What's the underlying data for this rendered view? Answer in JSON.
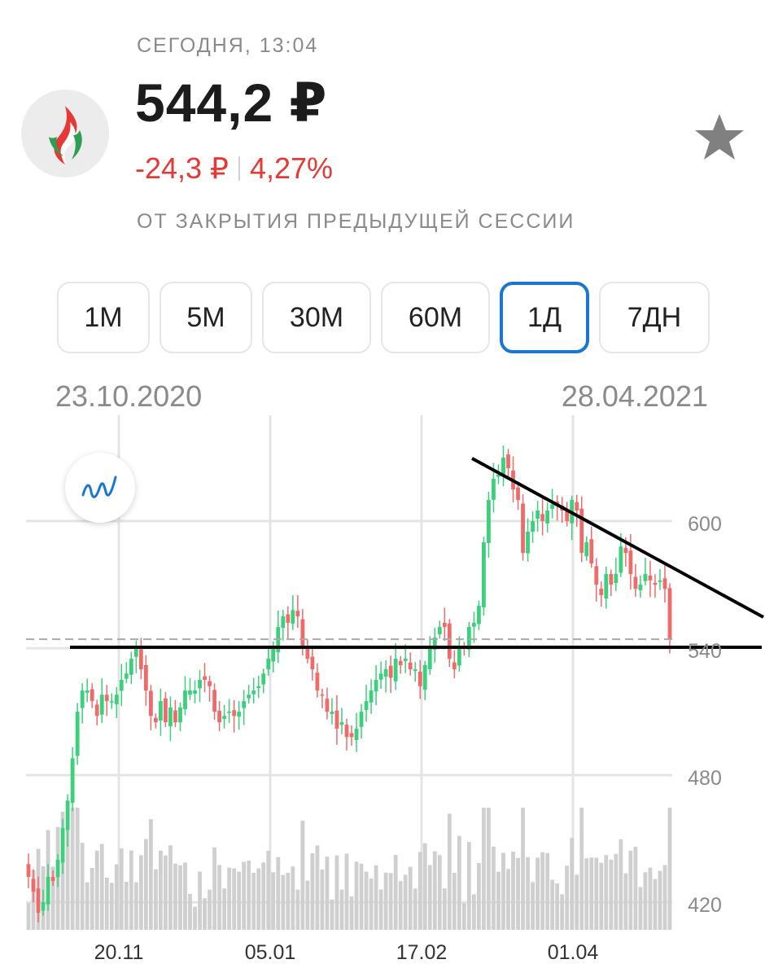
{
  "header": {
    "time_label": "СЕГОДНЯ, 13:04",
    "price": "544,2 ₽",
    "change_abs": "-24,3 ₽",
    "change_pct": "4,27%",
    "session_note": "ОТ ЗАКРЫТИЯ ПРЕДЫДУЩЕЙ СЕССИИ",
    "logo_icon": "flame-logo-icon",
    "favorite_icon": "star-icon"
  },
  "periods": [
    {
      "label": "1М",
      "active": false
    },
    {
      "label": "5М",
      "active": false
    },
    {
      "label": "30М",
      "active": false
    },
    {
      "label": "60М",
      "active": false
    },
    {
      "label": "1Д",
      "active": true
    },
    {
      "label": "7ДН",
      "active": false
    }
  ],
  "range": {
    "start": "23.10.2020",
    "end": "28.04.2021"
  },
  "colors": {
    "up": "#3ccf7c",
    "down": "#ef6b6b",
    "accent": "#1976d2",
    "negative_text": "#e53935",
    "volume": "#cfcfcf"
  },
  "chart_data": {
    "type": "candlestick",
    "x_ticks": [
      "20.11",
      "05.01",
      "17.02",
      "01.04"
    ],
    "y_ticks": [
      420,
      480,
      540,
      600
    ],
    "ylim": [
      407,
      650
    ],
    "last_price": 544.2,
    "grid": true,
    "closes": [
      432,
      425,
      415,
      420,
      432,
      430,
      440,
      455,
      468,
      488,
      510,
      520,
      520,
      515,
      508,
      518,
      515,
      515,
      518,
      525,
      528,
      535,
      540,
      530,
      520,
      508,
      505,
      515,
      505,
      512,
      505,
      512,
      520,
      520,
      520,
      525,
      525,
      522,
      510,
      505,
      508,
      510,
      508,
      510,
      515,
      518,
      520,
      522,
      528,
      535,
      540,
      550,
      555,
      552,
      558,
      555,
      540,
      535,
      530,
      520,
      518,
      510,
      510,
      502,
      505,
      498,
      498,
      502,
      510,
      515,
      520,
      525,
      528,
      530,
      526,
      535,
      532,
      535,
      530,
      530,
      522,
      532,
      540,
      545,
      550,
      550,
      535,
      530,
      540,
      540,
      550,
      552,
      560,
      590,
      610,
      620,
      622,
      630,
      625,
      615,
      610,
      585,
      595,
      600,
      605,
      600,
      605,
      608,
      607,
      605,
      600,
      610,
      605,
      585,
      590,
      580,
      570,
      565,
      575,
      570,
      575,
      588,
      585,
      575,
      568,
      570,
      575,
      572,
      570,
      572,
      568,
      544.2
    ],
    "volume_axis": false
  }
}
